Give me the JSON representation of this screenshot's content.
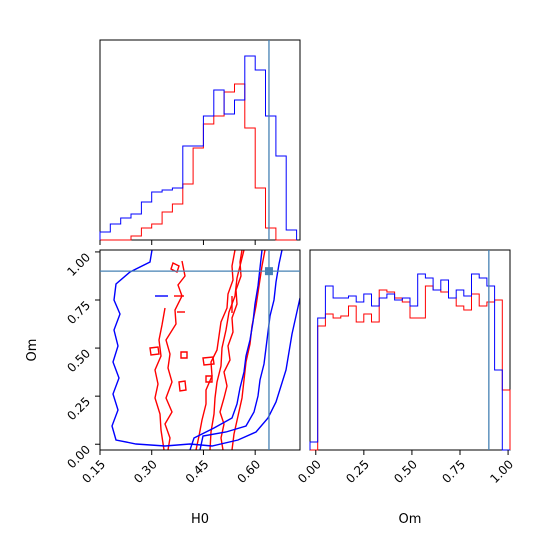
{
  "chart_data": {
    "type": "corner",
    "parameters": [
      "H0",
      "Om"
    ],
    "axes": {
      "H0": {
        "label": "H0",
        "range": [
          0.15,
          0.73
        ],
        "ticks": [
          "0.15",
          "0.30",
          "0.45",
          "0.60"
        ],
        "tick_values": [
          0.15,
          0.3,
          0.45,
          0.6
        ]
      },
      "Om": {
        "label": "Om",
        "range": [
          -0.03,
          1.01
        ],
        "ticks": [
          "0.00",
          "0.25",
          "0.50",
          "0.75",
          "1.00"
        ],
        "tick_values": [
          0.0,
          0.25,
          0.5,
          0.75,
          1.0
        ]
      }
    },
    "truth": {
      "H0": 0.64,
      "Om": 0.9
    },
    "colors": {
      "series_a": "#ff0000",
      "series_b": "#0000ff",
      "truth": "#4682b4"
    },
    "histograms": {
      "H0": {
        "bin_edges": [
          0.15,
          0.18,
          0.21,
          0.24,
          0.27,
          0.3,
          0.33,
          0.36,
          0.39,
          0.42,
          0.45,
          0.48,
          0.51,
          0.54,
          0.57,
          0.6,
          0.63,
          0.66,
          0.69,
          0.72
        ],
        "red": [
          0,
          0,
          0,
          0.02,
          0.06,
          0.08,
          0.14,
          0.18,
          0.28,
          0.46,
          0.58,
          0.62,
          0.74,
          0.78,
          0.56,
          0.26,
          0.06,
          0,
          0
        ],
        "blue": [
          0.04,
          0.08,
          0.11,
          0.13,
          0.19,
          0.24,
          0.25,
          0.26,
          0.47,
          0.47,
          0.62,
          0.75,
          0.63,
          0.7,
          0.92,
          0.85,
          0.62,
          0.42,
          0.05
        ]
      },
      "Om": {
        "bin_edges": [
          -0.03,
          0.01,
          0.05,
          0.09,
          0.13,
          0.17,
          0.21,
          0.25,
          0.29,
          0.33,
          0.37,
          0.41,
          0.45,
          0.49,
          0.53,
          0.57,
          0.61,
          0.65,
          0.69,
          0.73,
          0.77,
          0.81,
          0.85,
          0.89,
          0.93,
          0.97,
          1.01
        ],
        "red": [
          0,
          0.62,
          0.68,
          0.66,
          0.67,
          0.72,
          0.64,
          0.68,
          0.64,
          0.8,
          0.79,
          0.76,
          0.74,
          0.66,
          0.66,
          0.82,
          0.8,
          0.79,
          0.76,
          0.72,
          0.7,
          0.78,
          0.72,
          0.74,
          0.75,
          0.3
        ],
        "blue": [
          0.04,
          0.66,
          0.82,
          0.76,
          0.76,
          0.77,
          0.74,
          0.78,
          0.72,
          0.76,
          0.78,
          0.75,
          0.76,
          0.72,
          0.88,
          0.86,
          0.8,
          0.85,
          0.76,
          0.8,
          0.77,
          0.88,
          0.86,
          0.82,
          0.4,
          0
        ]
      }
    }
  }
}
